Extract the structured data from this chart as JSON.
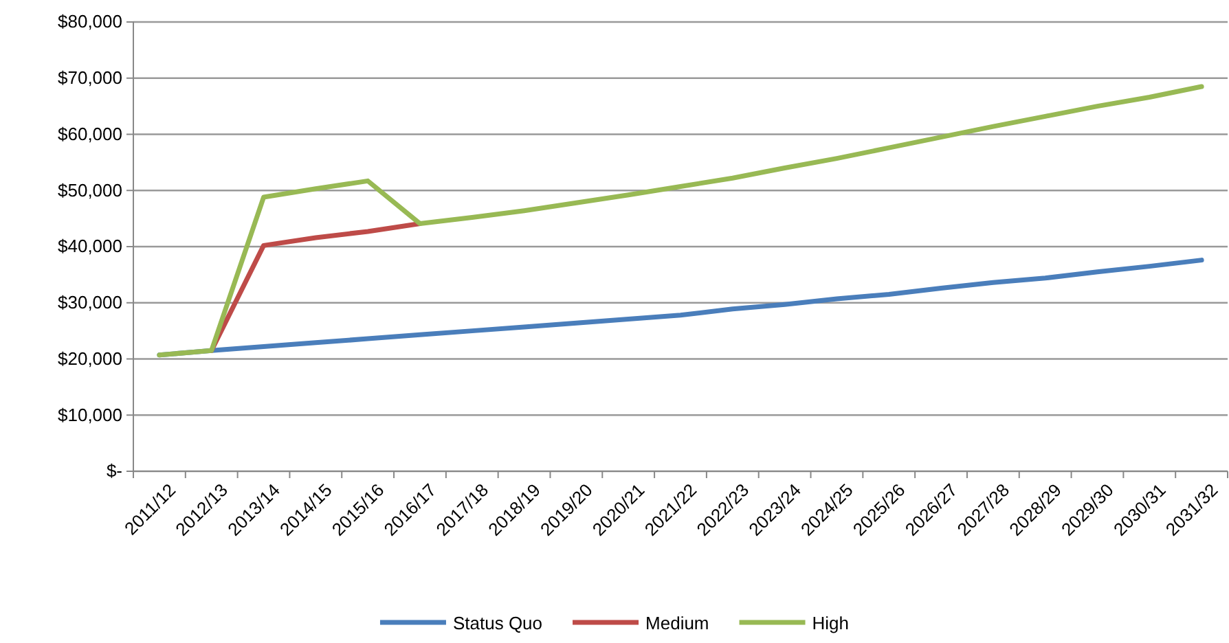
{
  "chart_data": {
    "type": "line",
    "categories": [
      "2011/12",
      "2012/13",
      "2013/14",
      "2014/15",
      "2015/16",
      "2016/17",
      "2017/18",
      "2018/19",
      "2019/20",
      "2020/21",
      "2021/22",
      "2022/23",
      "2023/24",
      "2024/25",
      "2025/26",
      "2026/27",
      "2027/28",
      "2028/29",
      "2029/30",
      "2030/31",
      "2031/32"
    ],
    "series": [
      {
        "name": "Status Quo",
        "color": "#4a7ebb",
        "values": [
          20700,
          21500,
          22200,
          22900,
          23600,
          24300,
          25000,
          25700,
          26400,
          27100,
          27800,
          28900,
          29700,
          30700,
          31500,
          32600,
          33600,
          34400,
          35500,
          36500,
          37600
        ]
      },
      {
        "name": "Medium",
        "color": "#be4b48",
        "values": [
          null,
          21500,
          40200,
          41600,
          42700,
          44100,
          null,
          null,
          null,
          null,
          null,
          null,
          null,
          null,
          null,
          null,
          null,
          null,
          null,
          null,
          null
        ]
      },
      {
        "name": "High",
        "color": "#98b954",
        "values": [
          20700,
          21500,
          48800,
          50300,
          51700,
          44100,
          45200,
          46400,
          47800,
          49200,
          50700,
          52200,
          54000,
          55700,
          57600,
          59500,
          61400,
          63200,
          65000,
          66600,
          68500
        ]
      }
    ],
    "ylim": [
      0,
      80000
    ],
    "yticks": [
      {
        "value": 0,
        "label": "$-"
      },
      {
        "value": 10000,
        "label": "$10,000"
      },
      {
        "value": 20000,
        "label": "$20,000"
      },
      {
        "value": 30000,
        "label": "$30,000"
      },
      {
        "value": 40000,
        "label": "$40,000"
      },
      {
        "value": 50000,
        "label": "$50,000"
      },
      {
        "value": 60000,
        "label": "$60,000"
      },
      {
        "value": 70000,
        "label": "$70,000"
      },
      {
        "value": 80000,
        "label": "$80,000"
      }
    ],
    "grid": "y",
    "legend": "bottom",
    "marker": "none",
    "line_style": "solid"
  }
}
